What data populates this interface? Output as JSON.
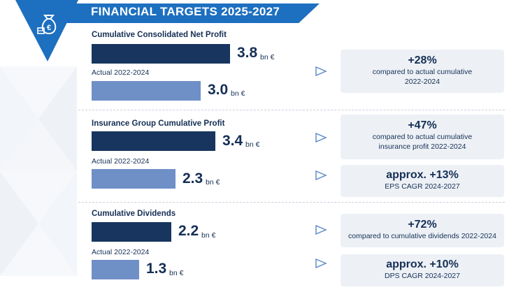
{
  "header": {
    "title": "FINANCIAL TARGETS 2025-2027",
    "icon": "money-bag-euro-icon",
    "accent_color": "#1d6fc0",
    "dark_color": "#17355e",
    "light_color": "#6f8fc7"
  },
  "chart_data": {
    "type": "bar",
    "orientation": "horizontal",
    "unit": "bn €",
    "groups": [
      {
        "title": "Cumulative Consolidated Net Profit",
        "target": {
          "value": 3.8,
          "label": "3.8"
        },
        "actual": {
          "label": "Actual 2022-2024",
          "value": 3.0,
          "value_label": "3.0"
        }
      },
      {
        "title": "Insurance Group Cumulative Profit",
        "target": {
          "value": 3.4,
          "label": "3.4"
        },
        "actual": {
          "label": "Actual 2022-2024",
          "value": 2.3,
          "value_label": "2.3"
        }
      },
      {
        "title": "Cumulative Dividends",
        "target": {
          "value": 2.2,
          "label": "2.2"
        },
        "actual": {
          "label": "Actual 2022-2024",
          "value": 1.3,
          "value_label": "1.3"
        }
      }
    ]
  },
  "callouts": [
    {
      "big": "+28%",
      "lines": [
        "compared to actual cumulative",
        "2022-2024"
      ]
    },
    {
      "big": "+47%",
      "lines": [
        "compared to actual cumulative",
        "insurance profit 2022-2024"
      ]
    },
    {
      "big": "approx. +13%",
      "lines": [
        "EPS CAGR 2024-2027"
      ]
    },
    {
      "big": "+72%",
      "lines": [
        "compared to cumulative dividends 2022-2024"
      ]
    },
    {
      "big": "approx. +10%",
      "lines": [
        "DPS CAGR 2024-2027"
      ]
    }
  ]
}
